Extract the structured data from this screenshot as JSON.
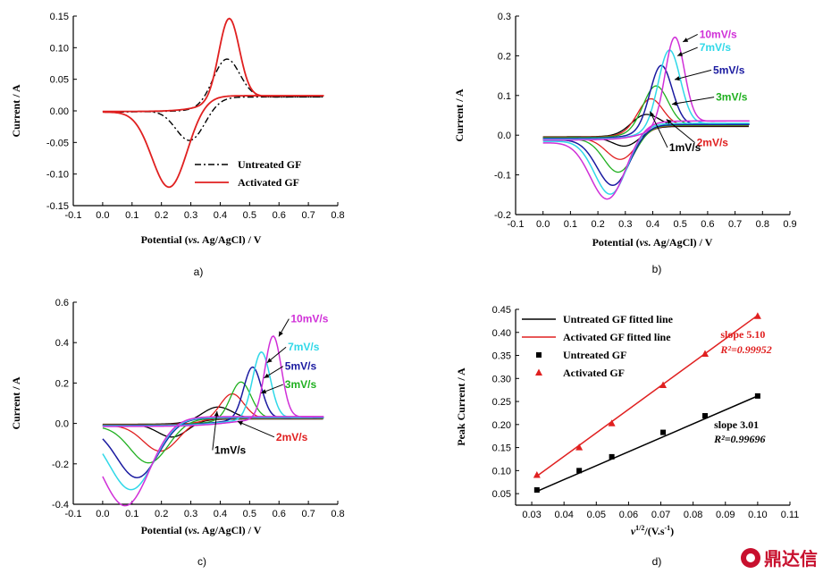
{
  "watermark": {
    "text": "鼎达信",
    "icon": "logo-icon",
    "color": "#c8102e"
  },
  "chart_data": [
    {
      "id": "a",
      "type": "line",
      "panel_label": "a)",
      "xlabel": "Potential (vs. Ag/AgCl) / V",
      "ylabel": "Current / A",
      "xlim": [
        -0.1,
        0.8
      ],
      "ylim": [
        -0.15,
        0.15
      ],
      "xticks": [
        -0.1,
        0.0,
        0.1,
        0.2,
        0.3,
        0.4,
        0.5,
        0.6,
        0.7,
        0.8
      ],
      "yticks": [
        -0.15,
        -0.1,
        -0.05,
        0.0,
        0.05,
        0.1,
        0.15
      ],
      "tick_decimals_x": 1,
      "tick_decimals_y": 2,
      "legend": {
        "position": "lower-right",
        "items": [
          {
            "name": "Untreated GF",
            "color": "#000000",
            "style": "dashdot"
          },
          {
            "name": "Activated GF",
            "color": "#e02020",
            "style": "solid"
          }
        ]
      },
      "cv_series": [
        {
          "name": "Untreated GF",
          "color": "#000000",
          "style": "dashdot",
          "width": 1.4,
          "E0": 0.0,
          "E1": 0.75,
          "anodic": {
            "start": -0.001,
            "end": 0.022,
            "mid": 0.38,
            "w": 0.04,
            "peak": 0.088,
            "peakE": 0.42,
            "cut": 0.045
          },
          "cathodic": {
            "start": -0.002,
            "end": 0.022,
            "mid": 0.26,
            "w": 0.04,
            "peak": -0.062,
            "peakE": 0.3,
            "cut": 0.05
          }
        },
        {
          "name": "Activated GF",
          "color": "#e02020",
          "style": "solid",
          "width": 1.8,
          "E0": 0.0,
          "E1": 0.75,
          "anodic": {
            "start": -0.001,
            "end": 0.024,
            "mid": 0.37,
            "w": 0.05,
            "peak": 0.152,
            "peakE": 0.43,
            "cut": 0.035
          },
          "cathodic": {
            "start": -0.002,
            "end": 0.024,
            "mid": 0.22,
            "w": 0.04,
            "peak": -0.133,
            "peakE": 0.23,
            "cut": 0.06
          }
        }
      ],
      "annotations": []
    },
    {
      "id": "b",
      "type": "line",
      "panel_label": "b)",
      "xlabel": "Potential (vs. Ag/AgCl) / V",
      "ylabel": "Current / A",
      "xlim": [
        -0.1,
        0.9
      ],
      "ylim": [
        -0.2,
        0.3
      ],
      "xticks": [
        -0.1,
        0.0,
        0.1,
        0.2,
        0.3,
        0.4,
        0.5,
        0.6,
        0.7,
        0.8,
        0.9
      ],
      "yticks": [
        -0.2,
        -0.1,
        0.0,
        0.1,
        0.2,
        0.3
      ],
      "tick_decimals_x": 1,
      "tick_decimals_y": 1,
      "cv_series": [
        {
          "name": "1mV/s",
          "color": "#000000",
          "width": 1.3,
          "E0": 0.0,
          "E1": 0.75,
          "anodic": {
            "start": -0.004,
            "end": 0.022,
            "mid": 0.33,
            "w": 0.035,
            "peak": 0.058,
            "peakE": 0.37,
            "cut": 0.05
          },
          "cathodic": {
            "start": -0.006,
            "end": 0.022,
            "mid": 0.3,
            "w": 0.035,
            "peak": -0.036,
            "peakE": 0.31,
            "cut": 0.05
          }
        },
        {
          "name": "2mV/s",
          "color": "#e02020",
          "width": 1.3,
          "E0": 0.0,
          "E1": 0.75,
          "anodic": {
            "start": -0.005,
            "end": 0.024,
            "mid": 0.34,
            "w": 0.04,
            "peak": 0.098,
            "peakE": 0.39,
            "cut": 0.045
          },
          "cathodic": {
            "start": -0.008,
            "end": 0.024,
            "mid": 0.29,
            "w": 0.04,
            "peak": -0.068,
            "peakE": 0.29,
            "cut": 0.055
          }
        },
        {
          "name": "3mV/s",
          "color": "#20b020",
          "width": 1.3,
          "E0": 0.0,
          "E1": 0.75,
          "anodic": {
            "start": -0.006,
            "end": 0.025,
            "mid": 0.35,
            "w": 0.042,
            "peak": 0.13,
            "peakE": 0.41,
            "cut": 0.045
          },
          "cathodic": {
            "start": -0.01,
            "end": 0.025,
            "mid": 0.28,
            "w": 0.042,
            "peak": -0.1,
            "peakE": 0.28,
            "cut": 0.055
          }
        },
        {
          "name": "5mV/s",
          "color": "#1a1aa0",
          "width": 1.5,
          "E0": 0.0,
          "E1": 0.75,
          "anodic": {
            "start": -0.008,
            "end": 0.027,
            "mid": 0.37,
            "w": 0.045,
            "peak": 0.183,
            "peakE": 0.43,
            "cut": 0.04
          },
          "cathodic": {
            "start": -0.012,
            "end": 0.027,
            "mid": 0.27,
            "w": 0.045,
            "peak": -0.131,
            "peakE": 0.26,
            "cut": 0.06
          }
        },
        {
          "name": "7mV/s",
          "color": "#30d8e8",
          "width": 1.5,
          "E0": 0.0,
          "E1": 0.75,
          "anodic": {
            "start": -0.01,
            "end": 0.03,
            "mid": 0.39,
            "w": 0.048,
            "peak": 0.222,
            "peakE": 0.46,
            "cut": 0.04
          },
          "cathodic": {
            "start": -0.016,
            "end": 0.03,
            "mid": 0.25,
            "w": 0.05,
            "peak": -0.155,
            "peakE": 0.25,
            "cut": 0.06
          }
        },
        {
          "name": "10mV/s",
          "color": "#d030d8",
          "width": 1.5,
          "E0": 0.0,
          "E1": 0.75,
          "anodic": {
            "start": -0.012,
            "end": 0.036,
            "mid": 0.4,
            "w": 0.05,
            "peak": 0.255,
            "peakE": 0.48,
            "cut": 0.035
          },
          "cathodic": {
            "start": -0.02,
            "end": 0.036,
            "mid": 0.24,
            "w": 0.055,
            "peak": -0.168,
            "peakE": 0.24,
            "cut": 0.065
          }
        }
      ],
      "annotations": [
        {
          "text": "10mV/s",
          "color": "#d030d8",
          "x": 0.57,
          "y": 0.245,
          "ax": 0.5,
          "ay": 0.235
        },
        {
          "text": "7mV/s",
          "color": "#30d8e8",
          "x": 0.57,
          "y": 0.212,
          "ax": 0.48,
          "ay": 0.2
        },
        {
          "text": "5mV/s",
          "color": "#1a1aa0",
          "x": 0.62,
          "y": 0.155,
          "ax": 0.47,
          "ay": 0.14
        },
        {
          "text": "3mV/s",
          "color": "#20b020",
          "x": 0.63,
          "y": 0.087,
          "ax": 0.46,
          "ay": 0.078
        },
        {
          "text": "2mV/s",
          "color": "#e02020",
          "x": 0.56,
          "y": -0.028,
          "ax": 0.44,
          "ay": 0.04
        },
        {
          "text": "1mV/s",
          "color": "#000000",
          "x": 0.46,
          "y": -0.04,
          "ax": 0.38,
          "ay": 0.06
        }
      ]
    },
    {
      "id": "c",
      "type": "line",
      "panel_label": "c)",
      "xlabel": "Potential (vs. Ag/AgCl) / V",
      "ylabel": "Current / A",
      "xlim": [
        -0.1,
        0.8
      ],
      "ylim": [
        -0.4,
        0.6
      ],
      "xticks": [
        -0.1,
        0.0,
        0.1,
        0.2,
        0.3,
        0.4,
        0.5,
        0.6,
        0.7,
        0.8
      ],
      "yticks": [
        -0.4,
        -0.2,
        0.0,
        0.2,
        0.4,
        0.6
      ],
      "tick_decimals_x": 1,
      "tick_decimals_y": 1,
      "cv_series": [
        {
          "name": "1mV/s",
          "color": "#000000",
          "width": 1.3,
          "E0": 0.0,
          "E1": 0.75,
          "anodic": {
            "start": -0.004,
            "end": 0.022,
            "mid": 0.32,
            "w": 0.04,
            "peak": 0.085,
            "peakE": 0.39,
            "cut": 0.05
          },
          "cathodic": {
            "start": -0.006,
            "end": 0.022,
            "mid": 0.27,
            "w": 0.04,
            "peak": -0.07,
            "peakE": 0.24,
            "cut": 0.05
          }
        },
        {
          "name": "2mV/s",
          "color": "#e02020",
          "width": 1.3,
          "E0": 0.0,
          "E1": 0.75,
          "anodic": {
            "start": -0.006,
            "end": 0.024,
            "mid": 0.35,
            "w": 0.045,
            "peak": 0.15,
            "peakE": 0.44,
            "cut": 0.04
          },
          "cathodic": {
            "start": -0.01,
            "end": 0.024,
            "mid": 0.22,
            "w": 0.045,
            "peak": -0.14,
            "peakE": 0.2,
            "cut": 0.06
          }
        },
        {
          "name": "3mV/s",
          "color": "#20b020",
          "width": 1.3,
          "E0": 0.0,
          "E1": 0.75,
          "anodic": {
            "start": -0.008,
            "end": 0.026,
            "mid": 0.38,
            "w": 0.05,
            "peak": 0.21,
            "peakE": 0.47,
            "cut": 0.035
          },
          "cathodic": {
            "start": -0.014,
            "end": 0.026,
            "mid": 0.19,
            "w": 0.05,
            "peak": -0.195,
            "peakE": 0.16,
            "cut": 0.065
          }
        },
        {
          "name": "5mV/s",
          "color": "#1a1aa0",
          "width": 1.5,
          "E0": 0.0,
          "E1": 0.75,
          "anodic": {
            "start": -0.01,
            "end": 0.028,
            "mid": 0.41,
            "w": 0.06,
            "peak": 0.285,
            "peakE": 0.51,
            "cut": 0.03
          },
          "cathodic": {
            "start": -0.018,
            "end": 0.028,
            "mid": 0.16,
            "w": 0.055,
            "peak": -0.265,
            "peakE": 0.12,
            "cut": 0.07
          }
        },
        {
          "name": "7mV/s",
          "color": "#30d8e8",
          "width": 1.5,
          "E0": 0.0,
          "E1": 0.75,
          "anodic": {
            "start": -0.012,
            "end": 0.03,
            "mid": 0.43,
            "w": 0.065,
            "peak": 0.36,
            "peakE": 0.54,
            "cut": 0.03
          },
          "cathodic": {
            "start": -0.022,
            "end": 0.03,
            "mid": 0.13,
            "w": 0.06,
            "peak": -0.325,
            "peakE": 0.1,
            "cut": 0.075
          }
        },
        {
          "name": "10mV/s",
          "color": "#d030d8",
          "width": 1.5,
          "E0": 0.0,
          "E1": 0.75,
          "anodic": {
            "start": -0.015,
            "end": 0.034,
            "mid": 0.46,
            "w": 0.07,
            "peak": 0.44,
            "peakE": 0.58,
            "cut": 0.028
          },
          "cathodic": {
            "start": -0.028,
            "end": 0.034,
            "mid": 0.1,
            "w": 0.065,
            "peak": -0.405,
            "peakE": 0.08,
            "cut": 0.08
          }
        }
      ],
      "annotations": [
        {
          "text": "10mV/s",
          "color": "#d030d8",
          "x": 0.64,
          "y": 0.5,
          "ax": 0.59,
          "ay": 0.43
        },
        {
          "text": "7mV/s",
          "color": "#30d8e8",
          "x": 0.63,
          "y": 0.36,
          "ax": 0.55,
          "ay": 0.3
        },
        {
          "text": "5mV/s",
          "color": "#1a1aa0",
          "x": 0.62,
          "y": 0.265,
          "ax": 0.54,
          "ay": 0.225
        },
        {
          "text": "3mV/s",
          "color": "#20b020",
          "x": 0.62,
          "y": 0.175,
          "ax": 0.53,
          "ay": 0.15
        },
        {
          "text": "2mV/s",
          "color": "#e02020",
          "x": 0.59,
          "y": -0.085,
          "ax": 0.45,
          "ay": 0.01
        },
        {
          "text": "1mV/s",
          "color": "#000000",
          "x": 0.38,
          "y": -0.15,
          "ax": 0.38,
          "ay": 0.06
        }
      ]
    },
    {
      "id": "d",
      "type": "scatter",
      "panel_label": "d)",
      "xlabel": "v^1/2/(V.s^-1)",
      "ylabel": "Peak Current / A",
      "xlim": [
        0.025,
        0.11
      ],
      "ylim": [
        0.025,
        0.45
      ],
      "xticks": [
        0.03,
        0.04,
        0.05,
        0.06,
        0.07,
        0.08,
        0.09,
        0.1,
        0.11
      ],
      "yticks": [
        0.05,
        0.1,
        0.15,
        0.2,
        0.25,
        0.3,
        0.35,
        0.4,
        0.45
      ],
      "tick_decimals_x": 2,
      "tick_decimals_y": 2,
      "series": [
        {
          "name": "Untreated GF",
          "marker": "square",
          "color": "#000000",
          "x": [
            0.0316,
            0.0447,
            0.0548,
            0.0707,
            0.0837,
            0.1
          ],
          "y": [
            0.058,
            0.1,
            0.13,
            0.183,
            0.219,
            0.262
          ]
        },
        {
          "name": "Activated GF",
          "marker": "triangle",
          "color": "#e02020",
          "x": [
            0.0316,
            0.0447,
            0.0548,
            0.0707,
            0.0837,
            0.1
          ],
          "y": [
            0.09,
            0.15,
            0.202,
            0.285,
            0.353,
            0.435
          ]
        }
      ],
      "fits": [
        {
          "name": "Untreated GF fitted line",
          "color": "#000000",
          "x": [
            0.0316,
            0.1
          ],
          "y": [
            0.055,
            0.262
          ]
        },
        {
          "name": "Activated GF fitted line",
          "color": "#e02020",
          "x": [
            0.0316,
            0.1
          ],
          "y": [
            0.088,
            0.437
          ]
        }
      ],
      "legend": {
        "position": "top-left",
        "items": [
          {
            "name": "Untreated GF fitted line",
            "kind": "line",
            "color": "#000000"
          },
          {
            "name": "Activated GF fitted line",
            "kind": "line",
            "color": "#e02020"
          },
          {
            "name": "Untreated GF",
            "kind": "square",
            "color": "#000000"
          },
          {
            "name": "Activated GF",
            "kind": "triangle",
            "color": "#e02020"
          }
        ]
      },
      "text_annotations": [
        {
          "text": "slope 5.10",
          "color": "#e02020",
          "x": 0.0885,
          "y": 0.388
        },
        {
          "text": "R²=0.99952",
          "color": "#e02020",
          "x": 0.0885,
          "y": 0.355
        },
        {
          "text": "slope 3.01",
          "color": "#000000",
          "x": 0.0865,
          "y": 0.192
        },
        {
          "text": "R²=0.99696",
          "color": "#000000",
          "x": 0.0865,
          "y": 0.161
        }
      ]
    }
  ]
}
